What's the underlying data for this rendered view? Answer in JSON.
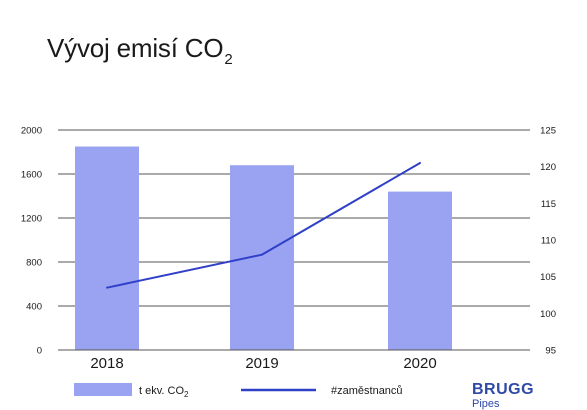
{
  "title": {
    "text": "Vývoj emisí CO",
    "subscript": "2"
  },
  "colors": {
    "bars": "#9aa3f2",
    "line": "#3040c8",
    "grid": "#555555",
    "text": "#1a1a1a",
    "brand": "#2f49a6"
  },
  "brand": {
    "name": "BRUGG",
    "sub": "Pipes"
  },
  "chart_data": {
    "type": "bar",
    "categories": [
      "2018",
      "2019",
      "2020"
    ],
    "series": [
      {
        "name": "t ekv. CO₂",
        "kind": "bar",
        "axis": "left",
        "values": [
          1850,
          1680,
          1440
        ]
      },
      {
        "name": "#zaměstnanců",
        "kind": "line",
        "axis": "right",
        "values": [
          103.5,
          108,
          120.5
        ]
      }
    ],
    "y_left": {
      "min": 0,
      "max": 2000,
      "ticks": [
        "0",
        "400",
        "800",
        "1200",
        "1600",
        "2000"
      ]
    },
    "y_right": {
      "min": 95,
      "max": 125,
      "ticks": [
        "95",
        "100",
        "105",
        "110",
        "115",
        "120",
        "125"
      ]
    },
    "grid": true,
    "legend_position": "bottom",
    "legend": [
      {
        "label": "t ekv. CO",
        "sub": "2",
        "kind": "bar"
      },
      {
        "label": "#zaměstnanců",
        "kind": "line"
      }
    ]
  }
}
